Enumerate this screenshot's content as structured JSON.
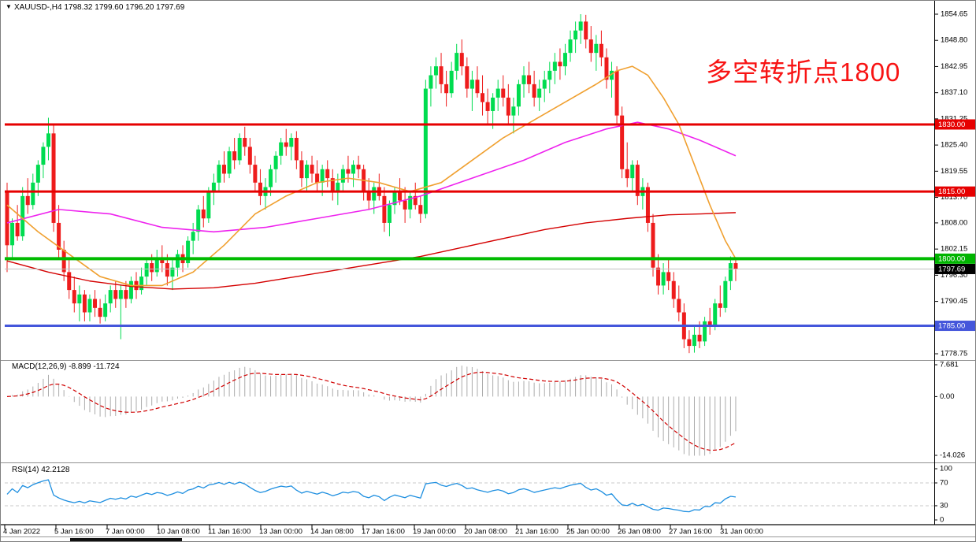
{
  "window": {
    "title": "XAUUSD-,H4  1798.32 1799.60 1796.20 1797.69",
    "symbol": "XAUUSD-",
    "timeframe": "H4",
    "dropdown_icon": "▼"
  },
  "annotation": {
    "text": "多空转折点1800",
    "color": "#f81414"
  },
  "indicators": {
    "macd_label": "MACD(12,26,9) -8.899 -11.724",
    "rsi_label": "RSI(14) 42.2128"
  },
  "axes": {
    "price_ticks": [
      "1854.65",
      "1848.80",
      "1842.95",
      "1837.10",
      "1831.25",
      "1825.40",
      "1819.55",
      "1813.70",
      "1808.00",
      "1802.15",
      "1796.30",
      "1790.45",
      "1784.60",
      "1778.75"
    ],
    "macd_ticks": [
      "7.681",
      "0.00",
      "-14.026"
    ],
    "macd_tick_values": [
      7.681,
      0,
      -14.026
    ],
    "rsi_ticks": [
      "100",
      "70",
      "30",
      "0"
    ],
    "rsi_tick_values": [
      100,
      70,
      30,
      0
    ],
    "time_labels": [
      "4 Jan 2022",
      "5 Jan 16:00",
      "7 Jan 00:00",
      "10 Jan 08:00",
      "11 Jan 16:00",
      "13 Jan 00:00",
      "14 Jan 08:00",
      "17 Jan 16:00",
      "19 Jan 00:00",
      "20 Jan 08:00",
      "21 Jan 16:00",
      "25 Jan 00:00",
      "26 Jan 08:00",
      "27 Jan 16:00",
      "31 Jan 00:00"
    ],
    "markers": [
      {
        "label": "1830.00",
        "value": 1830.0,
        "color": "#e60000"
      },
      {
        "label": "1815.00",
        "value": 1815.0,
        "color": "#e60000"
      },
      {
        "label": "1800.00",
        "value": 1800.0,
        "color": "#00b400"
      },
      {
        "label": "1797.69",
        "value": 1797.69,
        "color": "#000000"
      },
      {
        "label": "1785.00",
        "value": 1785.0,
        "color": "#4456db"
      }
    ]
  },
  "chart_data": {
    "type": "candlestick",
    "symbol": "XAUUSD",
    "timeframe": "H4",
    "current_bar": {
      "open": 1798.32,
      "high": 1799.6,
      "low": 1796.2,
      "close": 1797.69
    },
    "ylim": [
      1778.75,
      1854.65
    ],
    "colors": {
      "bull": "#00dc50",
      "bear": "#ee1c1c",
      "ma_fast": "#f0a030",
      "ma_mid": "#ee22ee",
      "ma_slow": "#d40000",
      "hline_red": "#e60000",
      "hline_green": "#00bb00",
      "hline_blue": "#4456db",
      "price_line": "#c0c0c0",
      "macd_hist": "#ababab",
      "macd_signal": "#d00000",
      "rsi": "#1e8fe0",
      "rsi_levels": "#c8c8c8"
    },
    "hlines": [
      {
        "price": 1830.0,
        "color": "#e60000",
        "width": 3
      },
      {
        "price": 1815.0,
        "color": "#e60000",
        "width": 3
      },
      {
        "price": 1800.0,
        "color": "#00bb00",
        "width": 4
      },
      {
        "price": 1785.0,
        "color": "#4456db",
        "width": 3
      },
      {
        "price": 1797.69,
        "color": "#c0c0c0",
        "width": 1
      }
    ],
    "candles": [
      [
        1815,
        1817,
        1797,
        1803
      ],
      [
        1803,
        1809,
        1800,
        1808
      ],
      [
        1808,
        1812,
        1804,
        1805
      ],
      [
        1805,
        1816,
        1804,
        1814
      ],
      [
        1814,
        1818,
        1810,
        1812
      ],
      [
        1812,
        1819,
        1811,
        1817
      ],
      [
        1817,
        1822,
        1814,
        1821
      ],
      [
        1821,
        1826,
        1818,
        1825
      ],
      [
        1825,
        1831.5,
        1822,
        1828
      ],
      [
        1828,
        1830,
        1806,
        1808
      ],
      [
        1808,
        1812,
        1800,
        1802
      ],
      [
        1802,
        1804,
        1795,
        1797
      ],
      [
        1797,
        1800,
        1791,
        1793
      ],
      [
        1793,
        1796,
        1788,
        1790
      ],
      [
        1790,
        1794,
        1786,
        1792
      ],
      [
        1792,
        1793,
        1786,
        1788
      ],
      [
        1788,
        1792,
        1786,
        1791
      ],
      [
        1791,
        1793,
        1787,
        1789
      ],
      [
        1789,
        1791,
        1785.5,
        1787
      ],
      [
        1787,
        1792,
        1786,
        1790
      ],
      [
        1790,
        1794,
        1788,
        1793
      ],
      [
        1793,
        1795,
        1789,
        1791
      ],
      [
        1791,
        1794,
        1782,
        1793
      ],
      [
        1793,
        1795,
        1789,
        1791
      ],
      [
        1791,
        1796,
        1790,
        1795
      ],
      [
        1795,
        1797,
        1791,
        1793
      ],
      [
        1793,
        1798,
        1792,
        1796
      ],
      [
        1796,
        1800,
        1794,
        1799
      ],
      [
        1799,
        1801,
        1795,
        1797
      ],
      [
        1797,
        1802,
        1796,
        1800
      ],
      [
        1800,
        1803,
        1797,
        1799
      ],
      [
        1799,
        1801,
        1794,
        1796
      ],
      [
        1796,
        1800,
        1793,
        1798
      ],
      [
        1798,
        1802,
        1796,
        1801
      ],
      [
        1801,
        1803,
        1797,
        1799
      ],
      [
        1799,
        1805,
        1798,
        1804
      ],
      [
        1804,
        1808,
        1801,
        1806
      ],
      [
        1806,
        1812,
        1804,
        1811
      ],
      [
        1811,
        1814,
        1807,
        1809
      ],
      [
        1809,
        1816,
        1808,
        1815
      ],
      [
        1815,
        1819,
        1812,
        1817
      ],
      [
        1817,
        1822,
        1815,
        1821
      ],
      [
        1821,
        1824,
        1817,
        1819
      ],
      [
        1819,
        1825,
        1818,
        1824
      ],
      [
        1824,
        1827,
        1820,
        1822
      ],
      [
        1822,
        1828,
        1821,
        1827
      ],
      [
        1827,
        1829.5,
        1823,
        1825
      ],
      [
        1825,
        1827,
        1819,
        1821
      ],
      [
        1821,
        1823,
        1815,
        1817
      ],
      [
        1817,
        1820,
        1812,
        1814
      ],
      [
        1814,
        1818,
        1811,
        1816
      ],
      [
        1816,
        1821,
        1814,
        1820
      ],
      [
        1820,
        1824,
        1817,
        1823
      ],
      [
        1823,
        1827,
        1821,
        1826
      ],
      [
        1826,
        1829,
        1823,
        1825
      ],
      [
        1825,
        1828,
        1822,
        1827
      ],
      [
        1827,
        1828.5,
        1820,
        1822
      ],
      [
        1822,
        1824,
        1816,
        1818
      ],
      [
        1818,
        1822,
        1815,
        1821
      ],
      [
        1821,
        1823,
        1817,
        1819
      ],
      [
        1819,
        1822,
        1815,
        1817
      ],
      [
        1817,
        1821,
        1814,
        1820
      ],
      [
        1820,
        1822,
        1816,
        1818
      ],
      [
        1818,
        1820,
        1813,
        1815
      ],
      [
        1815,
        1819,
        1812,
        1817
      ],
      [
        1817,
        1821,
        1815,
        1820
      ],
      [
        1820,
        1823,
        1817,
        1819
      ],
      [
        1819,
        1822,
        1816,
        1821
      ],
      [
        1821,
        1823,
        1818,
        1820
      ],
      [
        1820,
        1821,
        1813,
        1815
      ],
      [
        1815,
        1818,
        1811,
        1813
      ],
      [
        1813,
        1817,
        1810,
        1816
      ],
      [
        1816,
        1819,
        1813,
        1814
      ],
      [
        1814,
        1816,
        1806,
        1808
      ],
      [
        1808,
        1813,
        1805,
        1812
      ],
      [
        1812,
        1816,
        1810,
        1815
      ],
      [
        1815,
        1818,
        1812,
        1813
      ],
      [
        1813,
        1816,
        1808,
        1811
      ],
      [
        1811,
        1815,
        1809,
        1814
      ],
      [
        1814,
        1817,
        1811,
        1812
      ],
      [
        1812,
        1814,
        1808,
        1810
      ],
      [
        1810,
        1840,
        1809,
        1838
      ],
      [
        1838,
        1843,
        1834,
        1841
      ],
      [
        1841,
        1845,
        1838,
        1843
      ],
      [
        1843,
        1846,
        1837,
        1839
      ],
      [
        1839,
        1842,
        1834,
        1837
      ],
      [
        1837,
        1844,
        1836,
        1842
      ],
      [
        1842,
        1848,
        1840,
        1846
      ],
      [
        1846,
        1849,
        1841,
        1843
      ],
      [
        1843,
        1845,
        1836,
        1838
      ],
      [
        1838,
        1842,
        1833,
        1840
      ],
      [
        1840,
        1843,
        1836,
        1837
      ],
      [
        1837,
        1841,
        1832,
        1835
      ],
      [
        1835,
        1838,
        1830,
        1833
      ],
      [
        1833,
        1837,
        1829,
        1836
      ],
      [
        1836,
        1840,
        1833,
        1838
      ],
      [
        1838,
        1841,
        1834,
        1836
      ],
      [
        1836,
        1839,
        1830,
        1832
      ],
      [
        1832,
        1836,
        1828,
        1834
      ],
      [
        1834,
        1840,
        1832,
        1839
      ],
      [
        1839,
        1843,
        1836,
        1841
      ],
      [
        1841,
        1844,
        1837,
        1839
      ],
      [
        1839,
        1842,
        1834,
        1836
      ],
      [
        1836,
        1840,
        1833,
        1838
      ],
      [
        1838,
        1842,
        1835,
        1840
      ],
      [
        1840,
        1844,
        1837,
        1842
      ],
      [
        1842,
        1846,
        1839,
        1844
      ],
      [
        1844,
        1847,
        1840,
        1843
      ],
      [
        1843,
        1848,
        1841,
        1846
      ],
      [
        1846,
        1851,
        1844,
        1849
      ],
      [
        1849,
        1853,
        1846,
        1851
      ],
      [
        1851,
        1854.65,
        1848,
        1853
      ],
      [
        1853,
        1854.5,
        1847,
        1849
      ],
      [
        1849,
        1852,
        1844,
        1846
      ],
      [
        1846,
        1850,
        1842,
        1848
      ],
      [
        1848,
        1851,
        1843,
        1845
      ],
      [
        1845,
        1847,
        1838,
        1840
      ],
      [
        1840,
        1844,
        1836,
        1842
      ],
      [
        1842,
        1843,
        1830,
        1832
      ],
      [
        1832,
        1834,
        1818,
        1820
      ],
      [
        1820,
        1826,
        1816,
        1818
      ],
      [
        1818,
        1822,
        1815,
        1821
      ],
      [
        1821,
        1822,
        1812,
        1814
      ],
      [
        1814,
        1818,
        1811,
        1816
      ],
      [
        1816,
        1817,
        1806,
        1808
      ],
      [
        1808,
        1810,
        1796,
        1798
      ],
      [
        1798,
        1801,
        1792,
        1794
      ],
      [
        1794,
        1799,
        1792,
        1797
      ],
      [
        1797,
        1800,
        1793,
        1795
      ],
      [
        1795,
        1797,
        1789,
        1791
      ],
      [
        1791,
        1794,
        1786,
        1788
      ],
      [
        1788,
        1790,
        1780,
        1782
      ],
      [
        1782,
        1784,
        1778.9,
        1780.5
      ],
      [
        1780.5,
        1785,
        1779,
        1783
      ],
      [
        1783,
        1786,
        1780,
        1781.5
      ],
      [
        1781.5,
        1787,
        1780.5,
        1786
      ],
      [
        1786,
        1789,
        1783,
        1785
      ],
      [
        1785,
        1791,
        1784,
        1790
      ],
      [
        1790,
        1794,
        1787,
        1789
      ],
      [
        1789,
        1796,
        1788,
        1795
      ],
      [
        1795,
        1800.5,
        1793,
        1799
      ],
      [
        1799,
        1800,
        1795,
        1797.69
      ]
    ],
    "moving_averages": {
      "orange": [
        [
          0,
          1812
        ],
        [
          6,
          1806
        ],
        [
          12,
          1801
        ],
        [
          18,
          1796
        ],
        [
          24,
          1794
        ],
        [
          30,
          1794
        ],
        [
          36,
          1797
        ],
        [
          42,
          1803
        ],
        [
          48,
          1810
        ],
        [
          54,
          1814
        ],
        [
          60,
          1817
        ],
        [
          66,
          1818
        ],
        [
          72,
          1817
        ],
        [
          78,
          1815
        ],
        [
          84,
          1817
        ],
        [
          90,
          1822
        ],
        [
          96,
          1827
        ],
        [
          102,
          1831
        ],
        [
          108,
          1835
        ],
        [
          114,
          1839
        ],
        [
          118,
          1842
        ],
        [
          121,
          1843
        ],
        [
          124,
          1841
        ],
        [
          127,
          1836
        ],
        [
          130,
          1830
        ],
        [
          133,
          1821
        ],
        [
          136,
          1812
        ],
        [
          139,
          1804
        ],
        [
          141,
          1800
        ]
      ],
      "magenta": [
        [
          0,
          1808
        ],
        [
          10,
          1811
        ],
        [
          20,
          1810
        ],
        [
          30,
          1807
        ],
        [
          40,
          1806
        ],
        [
          50,
          1807
        ],
        [
          60,
          1809
        ],
        [
          70,
          1811
        ],
        [
          80,
          1814
        ],
        [
          90,
          1818
        ],
        [
          100,
          1822
        ],
        [
          108,
          1826
        ],
        [
          116,
          1829
        ],
        [
          122,
          1830.5
        ],
        [
          128,
          1829
        ],
        [
          134,
          1826.5
        ],
        [
          141,
          1823
        ]
      ],
      "darkred": [
        [
          0,
          1799.5
        ],
        [
          8,
          1797
        ],
        [
          16,
          1795
        ],
        [
          24,
          1793.8
        ],
        [
          32,
          1793.2
        ],
        [
          40,
          1793.5
        ],
        [
          48,
          1794.5
        ],
        [
          56,
          1796
        ],
        [
          64,
          1797.5
        ],
        [
          72,
          1799
        ],
        [
          80,
          1800.5
        ],
        [
          88,
          1802.5
        ],
        [
          96,
          1804.5
        ],
        [
          104,
          1806.5
        ],
        [
          112,
          1808
        ],
        [
          120,
          1809
        ],
        [
          128,
          1809.8
        ],
        [
          134,
          1810
        ],
        [
          141,
          1810.3
        ]
      ]
    },
    "macd": {
      "fast": 12,
      "slow": 26,
      "signal": 9,
      "value": -8.899,
      "signal_value": -11.724,
      "range": [
        -14.026,
        7.681
      ]
    },
    "rsi": {
      "period": 14,
      "value": 42.2128,
      "levels": [
        70,
        30
      ],
      "range": [
        0,
        100
      ]
    }
  }
}
